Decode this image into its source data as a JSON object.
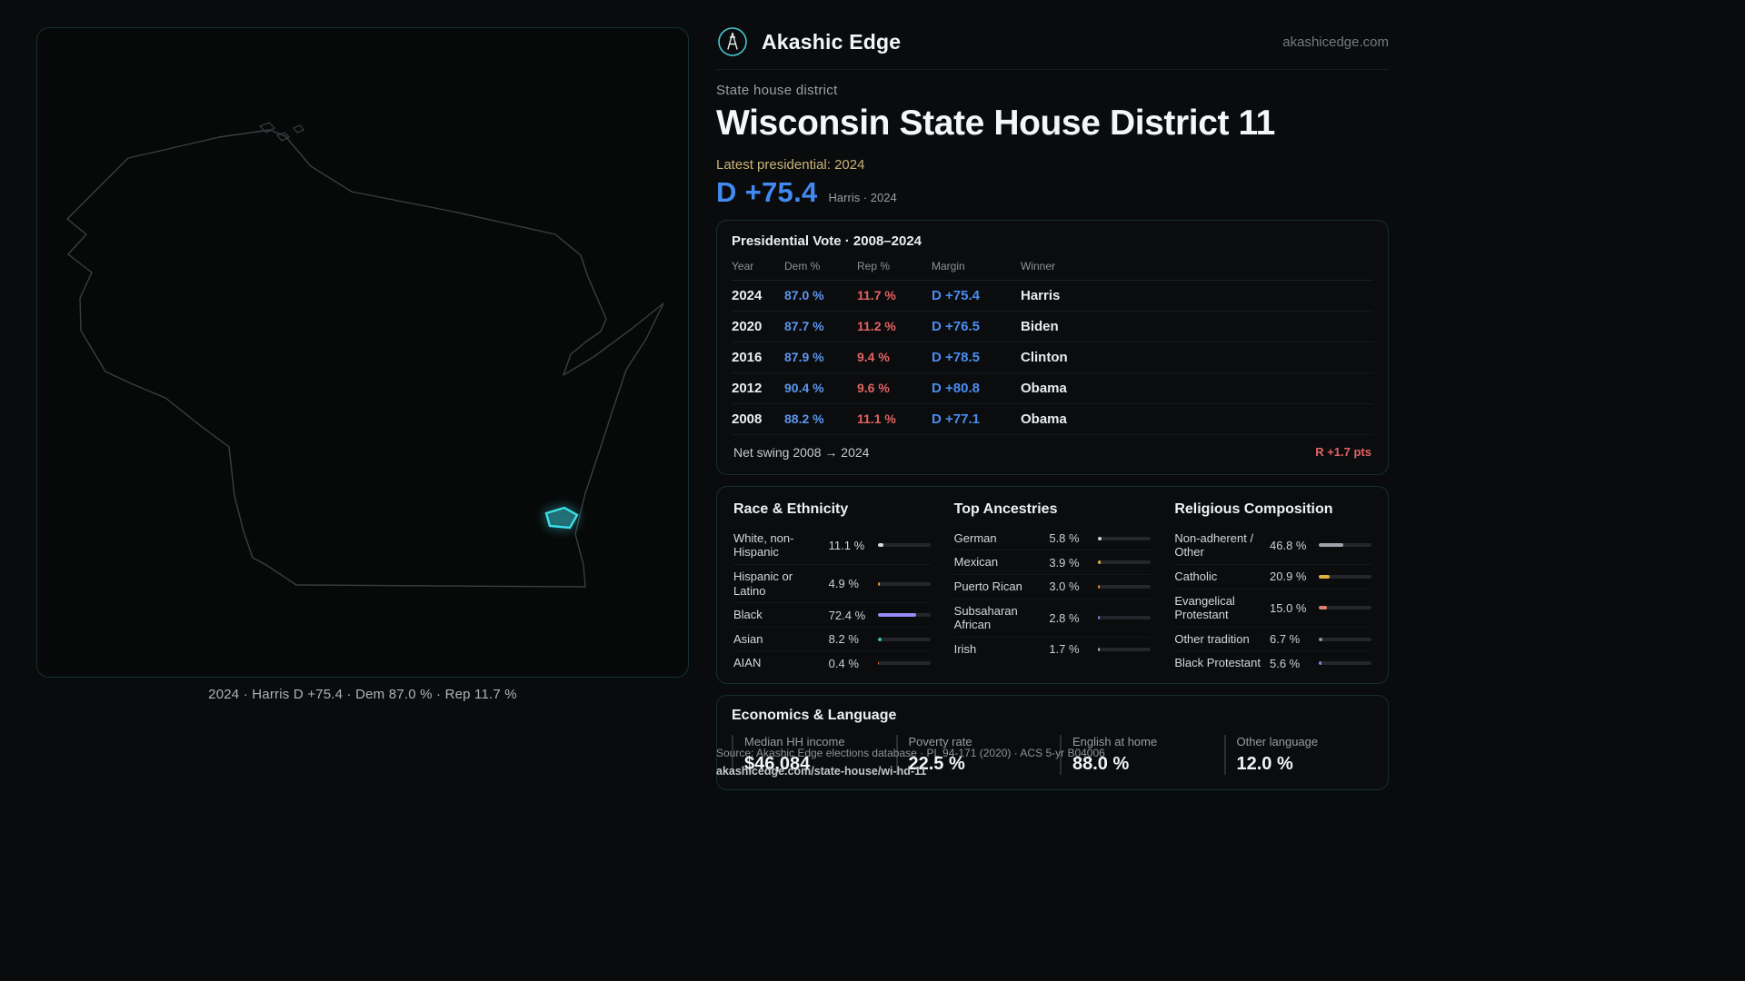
{
  "meta": {
    "brand": "Akashic Edge",
    "site": "akashicedge.com",
    "kicker": "State house district",
    "title": "Wisconsin State House District 11",
    "latest_label": "Latest presidential: 2024",
    "headline_margin": "D +75.4",
    "headline_sub": "Harris · 2024"
  },
  "map": {
    "caption": "2024 · Harris D +75.4 · Dem 87.0 % · Rep 11.7 %",
    "district_color": "#3ee0e9",
    "district_fill": "rgba(62,224,233,0.28)"
  },
  "colors": {
    "dem_blue": "#4a8df0",
    "rep_red": "#e36363",
    "accent_teal": "#45c9d1",
    "latest_tan": "#c8b478"
  },
  "presidential": {
    "title": "Presidential Vote · 2008–2024",
    "columns": [
      "Year",
      "Dem %",
      "Rep %",
      "Margin",
      "Winner"
    ],
    "rows": [
      {
        "year": "2024",
        "dem": "87.0 %",
        "rep": "11.7 %",
        "margin": "D +75.4",
        "winner": "Harris"
      },
      {
        "year": "2020",
        "dem": "87.7 %",
        "rep": "11.2 %",
        "margin": "D +76.5",
        "winner": "Biden"
      },
      {
        "year": "2016",
        "dem": "87.9 %",
        "rep": "9.4 %",
        "margin": "D +78.5",
        "winner": "Clinton"
      },
      {
        "year": "2012",
        "dem": "90.4 %",
        "rep": "9.6 %",
        "margin": "D +80.8",
        "winner": "Obama"
      },
      {
        "year": "2008",
        "dem": "88.2 %",
        "rep": "11.1 %",
        "margin": "D +77.1",
        "winner": "Obama"
      }
    ],
    "net_swing_label": "Net swing 2008 → 2024",
    "net_swing_value": "R +1.7 pts"
  },
  "demographics": {
    "groups": [
      {
        "key": "race",
        "title": "Race & Ethnicity",
        "rows": [
          {
            "label": "White, non-Hispanic",
            "value": "11.1 %",
            "pct": 11.1,
            "color": "#d9dbde"
          },
          {
            "label": "Hispanic or Latino",
            "value": "4.9 %",
            "pct": 4.9,
            "color": "#e0a23e"
          },
          {
            "label": "Black",
            "value": "72.4 %",
            "pct": 72.4,
            "color": "#988bf5"
          },
          {
            "label": "Asian",
            "value": "8.2 %",
            "pct": 8.2,
            "color": "#3cc4a4"
          },
          {
            "label": "AIAN",
            "value": "0.4 %",
            "pct": 0.4,
            "color": "#de6b3f"
          }
        ]
      },
      {
        "key": "ancestries",
        "title": "Top Ancestries",
        "rows": [
          {
            "label": "German",
            "value": "5.8 %",
            "pct": 5.8,
            "color": "#cfd2d6"
          },
          {
            "label": "Mexican",
            "value": "3.9 %",
            "pct": 3.9,
            "color": "#e4b63e"
          },
          {
            "label": "Puerto Rican",
            "value": "3.0 %",
            "pct": 3.0,
            "color": "#e09140"
          },
          {
            "label": "Subsaharan African",
            "value": "2.8 %",
            "pct": 2.8,
            "color": "#7b86f2"
          },
          {
            "label": "Irish",
            "value": "1.7 %",
            "pct": 1.7,
            "color": "#9fb3c8"
          }
        ]
      },
      {
        "key": "religion",
        "title": "Religious Composition",
        "rows": [
          {
            "label": "Non-adherent / Other",
            "value": "46.8 %",
            "pct": 46.8,
            "color": "#9ea3ab"
          },
          {
            "label": "Catholic",
            "value": "20.9 %",
            "pct": 20.9,
            "color": "#ddb33f"
          },
          {
            "label": "Evangelical Protestant",
            "value": "15.0 %",
            "pct": 15.0,
            "color": "#e57f70"
          },
          {
            "label": "Other tradition",
            "value": "6.7 %",
            "pct": 6.7,
            "color": "#8f959c"
          },
          {
            "label": "Black Protestant",
            "value": "5.6 %",
            "pct": 5.6,
            "color": "#8b80f0"
          }
        ]
      }
    ]
  },
  "economics": {
    "title": "Economics & Language",
    "stats": [
      {
        "label": "Median HH income",
        "value": "$46,084"
      },
      {
        "label": "Poverty rate",
        "value": "22.5 %"
      },
      {
        "label": "English at home",
        "value": "88.0 %"
      },
      {
        "label": "Other language",
        "value": "12.0 %"
      }
    ]
  },
  "footer": {
    "source": "Source: Akashic Edge elections database · PL 94-171 (2020) · ACS 5-yr B04006",
    "permalink": "akashicedge.com/state-house/wi-hd-11"
  }
}
